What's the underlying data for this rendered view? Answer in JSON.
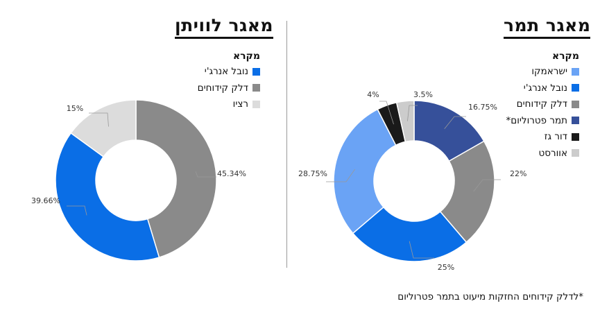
{
  "chart_data": [
    {
      "type": "pie",
      "title": "מאגר לוויתן",
      "legend_title": "מקרא",
      "categories": [
        "נובל אנרג'י",
        "דלק קידוחים",
        "רציו"
      ],
      "values": [
        39.66,
        45.34,
        15
      ],
      "labels": [
        "39.66%",
        "45.34%",
        "15%"
      ],
      "colors": [
        "#0a6ee6",
        "#8a8a8a",
        "#dcdcdc"
      ],
      "legend": "top-right",
      "donut": true
    },
    {
      "type": "pie",
      "title": "מאגר תמר",
      "legend_title": "מקרא",
      "categories": [
        "ישראמקו",
        "נובל אנרג'י",
        "דלק קידוחים",
        "תמר פטרוליום*",
        "דור גז",
        "אוורסט"
      ],
      "values": [
        28.75,
        25,
        22,
        16.75,
        4,
        3.5
      ],
      "labels": [
        "28.75%",
        "25%",
        "22%",
        "16.75%",
        "4%",
        "3.5%"
      ],
      "colors": [
        "#6aa3f5",
        "#0a6ee6",
        "#8a8a8a",
        "#36509a",
        "#1a1a1a",
        "#cccccc"
      ],
      "legend": "top-right",
      "donut": true
    }
  ],
  "footnote": "*לדלק קידוחים החזקות מיעוט בתמר פטרוליום"
}
